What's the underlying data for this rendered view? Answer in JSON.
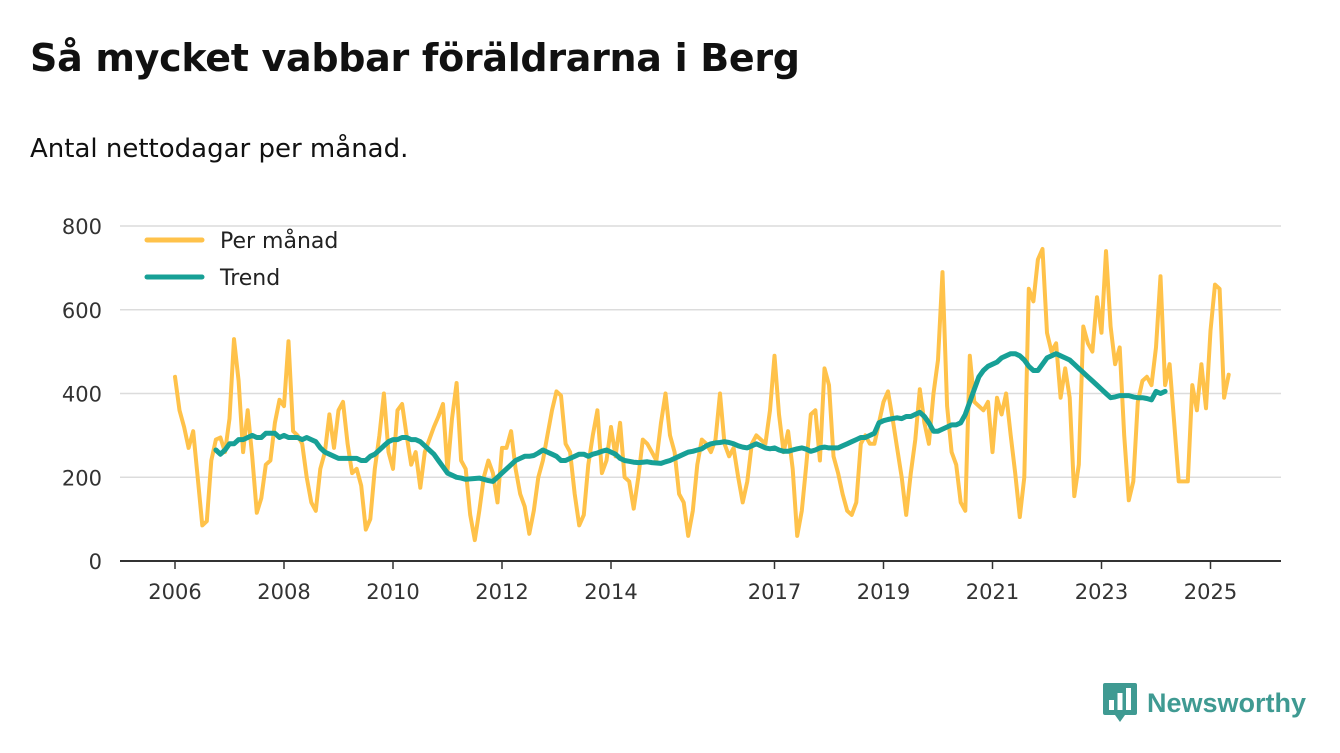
{
  "title": "Så mycket vabbar föräldrarna i Berg",
  "subtitle": "Antal nettodagar per månad.",
  "brand": {
    "name": "Newsworthy",
    "icon": "bar-chart-speech-bubble-icon",
    "color": "#3f9a92"
  },
  "chart_data": {
    "type": "line",
    "title": "Så mycket vabbar föräldrarna i Berg",
    "subtitle": "Antal nettodagar per månad.",
    "xlabel": "",
    "ylabel": "",
    "ylim": [
      0,
      800
    ],
    "yticks": [
      0,
      200,
      400,
      600,
      800
    ],
    "xlim": [
      2005.0,
      2026.3
    ],
    "xticks": [
      2006,
      2008,
      2010,
      2012,
      2014,
      2017,
      2019,
      2021,
      2023,
      2025
    ],
    "grid": true,
    "legend_position": "top-left",
    "series": [
      {
        "name": "Per månad",
        "color": "#ffc24a",
        "start": [
          2006,
          1
        ],
        "values": [
          440,
          360,
          320,
          270,
          310,
          200,
          85,
          95,
          240,
          290,
          295,
          260,
          340,
          530,
          430,
          260,
          360,
          250,
          115,
          150,
          230,
          240,
          330,
          385,
          370,
          525,
          310,
          300,
          280,
          200,
          140,
          120,
          220,
          260,
          350,
          270,
          360,
          380,
          280,
          210,
          220,
          180,
          75,
          100,
          220,
          300,
          400,
          260,
          220,
          360,
          375,
          300,
          230,
          260,
          175,
          260,
          290,
          320,
          345,
          375,
          215,
          340,
          425,
          240,
          220,
          110,
          50,
          120,
          200,
          240,
          210,
          140,
          270,
          270,
          310,
          220,
          160,
          130,
          65,
          120,
          200,
          240,
          300,
          360,
          405,
          395,
          280,
          260,
          160,
          85,
          110,
          230,
          300,
          360,
          210,
          240,
          320,
          250,
          330,
          200,
          190,
          125,
          200,
          290,
          280,
          260,
          240,
          330,
          400,
          300,
          260,
          160,
          140,
          60,
          120,
          230,
          290,
          280,
          260,
          290,
          400,
          280,
          250,
          270,
          200,
          140,
          190,
          280,
          300,
          290,
          280,
          360,
          490,
          350,
          260,
          310,
          220,
          60,
          120,
          230,
          350,
          360,
          240,
          460,
          420,
          250,
          210,
          160,
          120,
          110,
          140,
          280,
          300,
          280,
          280,
          330,
          380,
          405,
          340,
          270,
          200,
          110,
          210,
          290,
          410,
          330,
          280,
          400,
          480,
          690,
          370,
          260,
          230,
          140,
          120,
          490,
          380,
          370,
          360,
          380,
          260,
          390,
          350,
          400,
          300,
          210,
          105,
          200,
          650,
          620,
          720,
          745,
          545,
          500,
          520,
          390,
          460,
          390,
          155,
          230,
          560,
          520,
          500,
          630,
          545,
          740,
          560,
          470,
          510,
          300,
          145,
          190,
          380,
          430,
          440,
          420,
          510,
          680,
          420,
          470,
          330,
          190,
          190,
          190,
          420,
          360,
          470,
          365,
          550,
          660,
          650,
          390,
          445
        ]
      },
      {
        "name": "Trend",
        "color": "#17a096",
        "start": [
          2006,
          10
        ],
        "values": [
          265,
          255,
          265,
          280,
          280,
          290,
          290,
          295,
          300,
          295,
          295,
          305,
          305,
          305,
          295,
          300,
          295,
          295,
          295,
          290,
          295,
          290,
          285,
          270,
          260,
          255,
          250,
          245,
          245,
          245,
          245,
          245,
          240,
          240,
          250,
          255,
          265,
          275,
          285,
          290,
          290,
          295,
          295,
          290,
          290,
          285,
          275,
          265,
          255,
          240,
          225,
          210,
          205,
          200,
          198,
          195,
          196,
          197,
          198,
          195,
          192,
          190,
          200,
          210,
          220,
          230,
          240,
          245,
          250,
          250,
          252,
          258,
          265,
          260,
          255,
          250,
          240,
          240,
          245,
          250,
          255,
          255,
          250,
          255,
          258,
          262,
          265,
          260,
          255,
          245,
          240,
          238,
          236,
          235,
          236,
          237,
          235,
          234,
          233,
          237,
          240,
          245,
          250,
          255,
          260,
          262,
          265,
          268,
          275,
          280,
          282,
          283,
          285,
          283,
          280,
          275,
          272,
          270,
          275,
          280,
          275,
          270,
          268,
          270,
          265,
          262,
          262,
          265,
          268,
          270,
          267,
          262,
          265,
          270,
          272,
          270,
          270,
          270,
          275,
          280,
          285,
          290,
          295,
          295,
          300,
          305,
          330,
          335,
          338,
          340,
          342,
          340,
          345,
          345,
          350,
          355,
          345,
          330,
          310,
          310,
          315,
          320,
          325,
          325,
          330,
          350,
          380,
          410,
          440,
          455,
          465,
          470,
          475,
          485,
          490,
          495,
          495,
          490,
          480,
          465,
          455,
          455,
          470,
          485,
          490,
          495,
          490,
          485,
          480,
          470,
          460,
          450,
          440,
          430,
          420,
          410,
          400,
          390,
          392,
          395,
          395,
          395,
          392,
          390,
          390,
          388,
          385,
          405,
          400,
          405
        ]
      }
    ]
  }
}
